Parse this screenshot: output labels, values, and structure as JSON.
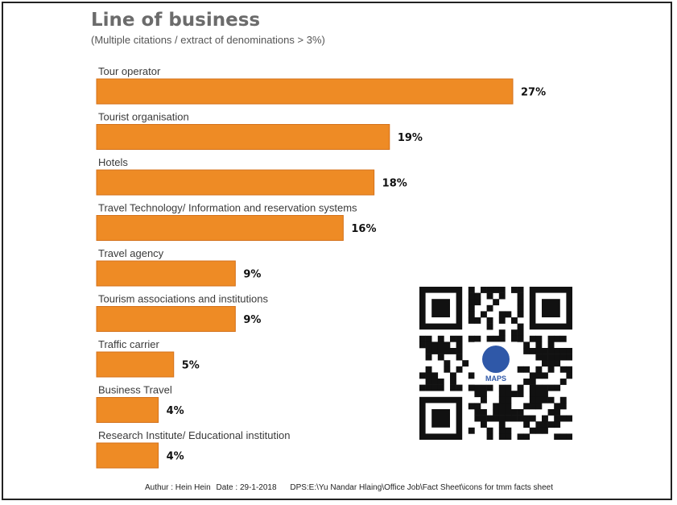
{
  "chart_data": {
    "type": "bar",
    "orientation": "horizontal",
    "title": "Line of business",
    "subtitle": "(Multiple citations / extract of denominations > 3%)",
    "categories": [
      "Tour operator",
      "Tourist organisation",
      "Hotels",
      "Travel Technology/ Information and reservation systems",
      "Travel agency",
      "Tourism associations and institutions",
      "Traffic carrier",
      "Business Travel",
      "Research Institute/ Educational institution"
    ],
    "values": [
      27,
      19,
      18,
      16,
      9,
      9,
      5,
      4,
      4
    ],
    "value_labels": [
      "27%",
      "19%",
      "18%",
      "16%",
      "9%",
      "9%",
      "5%",
      "4%",
      "4%"
    ],
    "unit": "%",
    "bar_color": "#ee8b25",
    "bar_border": "#d4711a",
    "grid": false,
    "legend": false
  },
  "footer": {
    "author": "Authur : Hein Hein",
    "date": "Date : 29-1-2018",
    "path": "DPS:E:\\Yu Nandar Hlaing\\Office Job\\Fact Sheet\\icons for tmm facts sheet"
  },
  "logo": {
    "text": "MAPS",
    "icon": "qr-code-icon"
  }
}
